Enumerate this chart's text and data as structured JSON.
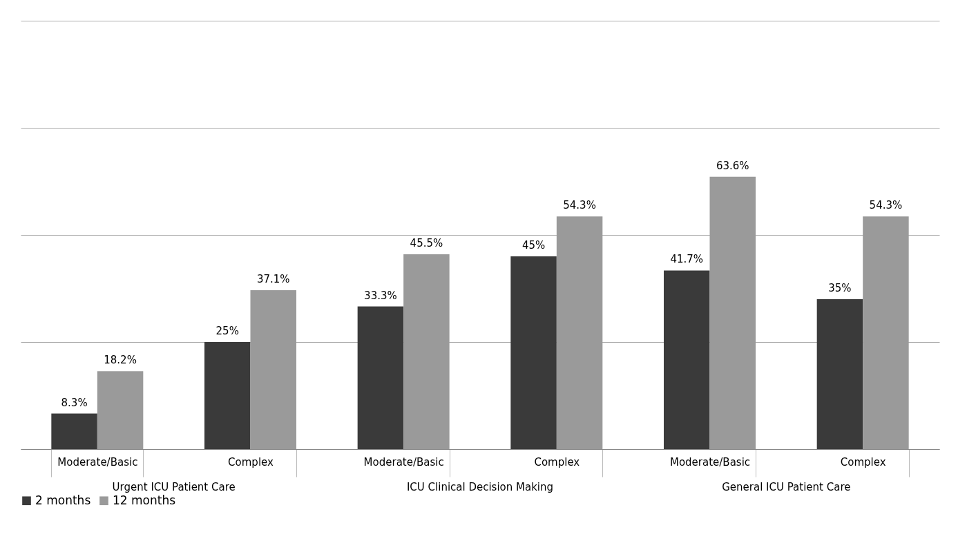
{
  "chart_data": {
    "type": "bar",
    "categories": [
      "Moderate/Basic",
      "Complex",
      "Moderate/Basic",
      "Complex",
      "Moderate/Basic",
      "Complex"
    ],
    "series": [
      {
        "name": "2 months",
        "color": "#3a3a3a",
        "values": [
          8.3,
          25,
          33.3,
          45,
          41.7,
          35
        ],
        "value_labels": [
          "8.3%",
          "25%",
          "33.3%",
          "45%",
          "41.7%",
          "35%"
        ]
      },
      {
        "name": "12 months",
        "color": "#9a9a9a",
        "values": [
          18.2,
          37.1,
          45.5,
          54.3,
          63.6,
          54.3
        ],
        "value_labels": [
          "18.2%",
          "37.1%",
          "45.5%",
          "54.3%",
          "63.6%",
          "54.3%"
        ]
      }
    ],
    "annotations": [
      "Urgent ICU Patient Care",
      "ICU Clinical Decision Making",
      "General ICU Patient Care"
    ],
    "ylim": [
      0,
      100
    ],
    "yticks": [
      {
        "value": 0,
        "label": null
      },
      {
        "value": 25,
        "label": null
      },
      {
        "value": 50,
        "label": null
      },
      {
        "value": 75,
        "label": null
      },
      {
        "value": 100,
        "label": null
      }
    ],
    "grid": "y",
    "tick_labels": "x",
    "legend": "bottom"
  }
}
